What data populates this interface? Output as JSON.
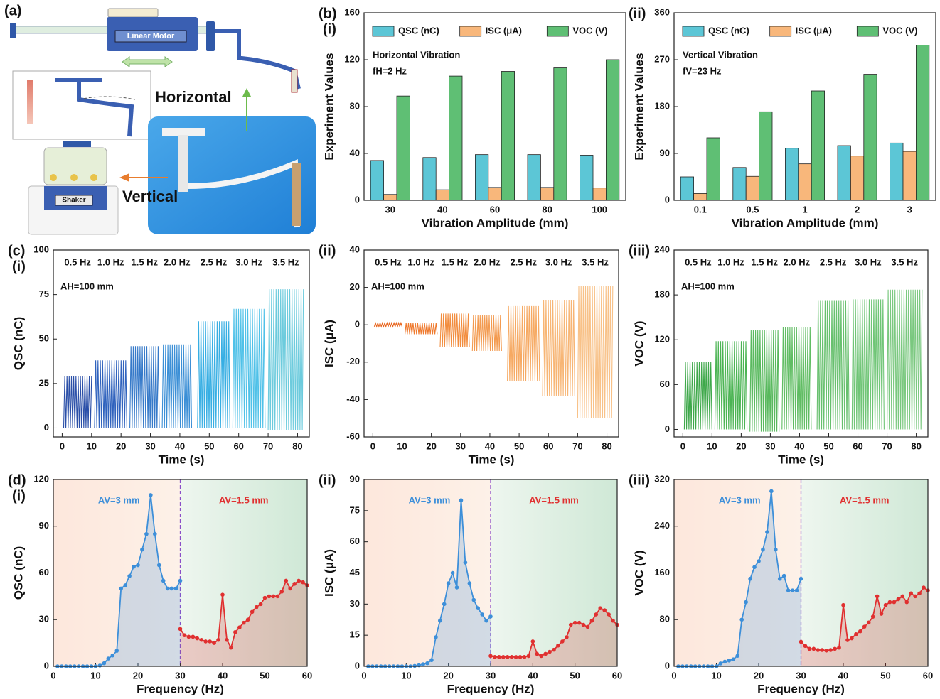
{
  "diagram": {
    "label": "(a)",
    "motor": "Linear Motor",
    "horizontal": "Horizontal",
    "shaker": "Shaker",
    "vertical": "Vertical"
  },
  "chart_data": [
    {
      "type": "bar",
      "panel_labels": [
        "(b)",
        "(i)"
      ],
      "xlabel": "Vibration Amplitude (mm)",
      "ylabel": "Experiment Values",
      "annotations": [
        "Horizontal Vibration",
        "fH=2 Hz"
      ],
      "categories": [
        "30",
        "40",
        "60",
        "80",
        "100"
      ],
      "series": [
        {
          "name": "QSC (nC)",
          "color": "#5cc6d6",
          "values": [
            34,
            36.5,
            39,
            39,
            38.5
          ]
        },
        {
          "name": "ISC (μA)",
          "color": "#f8b77b",
          "values": [
            5,
            9,
            11,
            11,
            10.5
          ]
        },
        {
          "name": "VOC (V)",
          "color": "#5fbf74",
          "values": [
            89,
            106,
            110,
            113,
            120
          ]
        }
      ],
      "ylim": [
        0,
        160
      ],
      "yticks": [
        0,
        40,
        80,
        120,
        160
      ]
    },
    {
      "type": "bar",
      "panel_labels": [
        "(ii)"
      ],
      "xlabel": "Vibration Amplitude (mm)",
      "ylabel": "Experiment Values",
      "annotations": [
        "Vertical Vibration",
        "fV=23 Hz"
      ],
      "categories": [
        "0.1",
        "0.5",
        "1",
        "2",
        "3"
      ],
      "series": [
        {
          "name": "QSC (nC)",
          "color": "#5cc6d6",
          "values": [
            45,
            63,
            100,
            105,
            110
          ]
        },
        {
          "name": "ISC (μA)",
          "color": "#f8b77b",
          "values": [
            13,
            46,
            70,
            85,
            94
          ]
        },
        {
          "name": "VOC (V)",
          "color": "#5fbf74",
          "values": [
            120,
            170,
            210,
            242,
            298
          ]
        }
      ],
      "ylim": [
        0,
        360
      ],
      "yticks": [
        0,
        90,
        180,
        270,
        360
      ]
    },
    {
      "type": "segments",
      "panel_labels": [
        "(c)",
        "(i)"
      ],
      "xlabel": "Time (s)",
      "ylabel": "QSC (nC)",
      "annotations": [
        "AH=100 mm"
      ],
      "series": [
        {
          "name": "0.5 Hz",
          "color": "#2a4fa8",
          "x": [
            0.5,
            10
          ],
          "values": [
            0,
            29
          ]
        },
        {
          "name": "1.0 Hz",
          "color": "#2f62bd",
          "x": [
            11,
            22
          ],
          "values": [
            0,
            38
          ]
        },
        {
          "name": "1.5 Hz",
          "color": "#3579c9",
          "x": [
            23,
            33
          ],
          "values": [
            0,
            46
          ]
        },
        {
          "name": "2.0 Hz",
          "color": "#3b8fd6",
          "x": [
            34,
            44
          ],
          "values": [
            0,
            47
          ]
        },
        {
          "name": "2.5 Hz",
          "color": "#36aee3",
          "x": [
            46,
            57
          ],
          "values": [
            0,
            60
          ]
        },
        {
          "name": "3.0 Hz",
          "color": "#4fc1e8",
          "x": [
            58,
            69
          ],
          "values": [
            0,
            67
          ]
        },
        {
          "name": "3.5 Hz",
          "color": "#6ccbdd",
          "x": [
            70,
            82
          ],
          "values": [
            -1,
            78
          ]
        }
      ],
      "xlim": [
        -3,
        84
      ],
      "xticks": [
        0,
        10,
        20,
        30,
        40,
        50,
        60,
        70,
        80
      ],
      "ylim": [
        -5,
        100
      ],
      "yticks": [
        0,
        25,
        50,
        75,
        100
      ]
    },
    {
      "type": "segments",
      "panel_labels": [
        "(ii)"
      ],
      "xlabel": "Time (s)",
      "ylabel": "ISC (μA)",
      "annotations": [
        "AH=100 mm"
      ],
      "series": [
        {
          "name": "0.5 Hz",
          "color": "#e8661f",
          "x": [
            0.5,
            10
          ],
          "values": [
            -1,
            1
          ]
        },
        {
          "name": "1.0 Hz",
          "color": "#ef7a2e",
          "x": [
            11,
            22
          ],
          "values": [
            -5,
            1
          ]
        },
        {
          "name": "1.5 Hz",
          "color": "#f28c3d",
          "x": [
            23,
            33
          ],
          "values": [
            -12,
            6
          ]
        },
        {
          "name": "2.0 Hz",
          "color": "#f39a4f",
          "x": [
            34,
            44
          ],
          "values": [
            -14,
            5
          ]
        },
        {
          "name": "2.5 Hz",
          "color": "#f6a962",
          "x": [
            46,
            57
          ],
          "values": [
            -30,
            10
          ]
        },
        {
          "name": "3.0 Hz",
          "color": "#f7b574",
          "x": [
            58,
            69
          ],
          "values": [
            -38,
            13
          ]
        },
        {
          "name": "3.5 Hz",
          "color": "#f8c187",
          "x": [
            70,
            82
          ],
          "values": [
            -50,
            21
          ]
        }
      ],
      "xlim": [
        -3,
        84
      ],
      "xticks": [
        0,
        10,
        20,
        30,
        40,
        50,
        60,
        70,
        80
      ],
      "ylim": [
        -60,
        40
      ],
      "yticks": [
        -60,
        -40,
        -20,
        0,
        20,
        40
      ]
    },
    {
      "type": "segments",
      "panel_labels": [
        "(iii)"
      ],
      "xlabel": "Time (s)",
      "ylabel": "VOC (V)",
      "annotations": [
        "AH=100 mm"
      ],
      "series": [
        {
          "name": "0.5 Hz",
          "color": "#3ea84a",
          "x": [
            0.5,
            10
          ],
          "values": [
            0,
            90
          ]
        },
        {
          "name": "1.0 Hz",
          "color": "#4bb453",
          "x": [
            11,
            22
          ],
          "values": [
            0,
            118
          ]
        },
        {
          "name": "1.5 Hz",
          "color": "#58b95d",
          "x": [
            23,
            33
          ],
          "values": [
            -3,
            133
          ]
        },
        {
          "name": "2.0 Hz",
          "color": "#60bd63",
          "x": [
            34,
            44
          ],
          "values": [
            0,
            137
          ]
        },
        {
          "name": "2.5 Hz",
          "color": "#67c06e",
          "x": [
            46,
            57
          ],
          "values": [
            0,
            172
          ]
        },
        {
          "name": "3.0 Hz",
          "color": "#6fc576",
          "x": [
            58,
            69
          ],
          "values": [
            0,
            174
          ]
        },
        {
          "name": "3.5 Hz",
          "color": "#7ac87f",
          "x": [
            70,
            82
          ],
          "values": [
            0,
            187
          ]
        }
      ],
      "xlim": [
        -3,
        84
      ],
      "xticks": [
        0,
        10,
        20,
        30,
        40,
        50,
        60,
        70,
        80
      ],
      "ylim": [
        -10,
        240
      ],
      "yticks": [
        0,
        60,
        120,
        180,
        240
      ]
    },
    {
      "type": "line",
      "panel_labels": [
        "(d)",
        "(i)"
      ],
      "xlabel": "Frequency (Hz)",
      "ylabel": "QSC (nC)",
      "annotations": [
        "AV=3 mm",
        "AV=1.5 mm"
      ],
      "divider_x": 30,
      "series": [
        {
          "color": "#3d8fd9",
          "x": [
            1,
            2,
            3,
            4,
            5,
            6,
            7,
            8,
            9,
            10,
            11,
            12,
            13,
            14,
            15,
            16,
            17,
            18,
            19,
            20,
            21,
            22,
            23,
            24,
            25,
            26,
            27,
            28,
            29,
            30
          ],
          "values": [
            0,
            0,
            0,
            0,
            0,
            0,
            0,
            0,
            0,
            0,
            0.5,
            2,
            5,
            7,
            10,
            50,
            52,
            58,
            64,
            65,
            75,
            85,
            110,
            85,
            65,
            55,
            50,
            50,
            50,
            55
          ]
        },
        {
          "color": "#e03030",
          "x": [
            30,
            31,
            32,
            33,
            34,
            35,
            36,
            37,
            38,
            39,
            40,
            41,
            42,
            43,
            44,
            45,
            46,
            47,
            48,
            49,
            50,
            51,
            52,
            53,
            54,
            55,
            56,
            57,
            58,
            59,
            60
          ],
          "values": [
            24,
            20,
            19,
            19,
            18,
            17,
            16,
            16,
            15,
            17,
            46,
            17,
            12,
            22,
            25,
            28,
            30,
            35,
            38,
            40,
            44,
            45,
            45,
            45,
            48,
            55,
            50,
            53,
            55,
            54,
            52
          ]
        }
      ],
      "xlim": [
        0,
        60
      ],
      "xticks": [
        0,
        10,
        20,
        30,
        40,
        50,
        60
      ],
      "ylim": [
        0,
        120
      ],
      "yticks": [
        0,
        30,
        60,
        90,
        120
      ]
    },
    {
      "type": "line",
      "panel_labels": [
        "(ii)"
      ],
      "xlabel": "Frequency (Hz)",
      "ylabel": "ISC (μA)",
      "annotations": [
        "AV=3 mm",
        "AV=1.5 mm"
      ],
      "divider_x": 30,
      "series": [
        {
          "color": "#3d8fd9",
          "x": [
            1,
            2,
            3,
            4,
            5,
            6,
            7,
            8,
            9,
            10,
            11,
            12,
            13,
            14,
            15,
            16,
            17,
            18,
            19,
            20,
            21,
            22,
            23,
            24,
            25,
            26,
            27,
            28,
            29,
            30
          ],
          "values": [
            0,
            0,
            0,
            0,
            0,
            0,
            0,
            0,
            0,
            0,
            0,
            0.2,
            0.5,
            1,
            1.5,
            3,
            14,
            22,
            30,
            40,
            45,
            38,
            80,
            50,
            40,
            32,
            28,
            25,
            22,
            24
          ]
        },
        {
          "color": "#e03030",
          "x": [
            30,
            31,
            32,
            33,
            34,
            35,
            36,
            37,
            38,
            39,
            40,
            41,
            42,
            43,
            44,
            45,
            46,
            47,
            48,
            49,
            50,
            51,
            52,
            53,
            54,
            55,
            56,
            57,
            58,
            59,
            60
          ],
          "values": [
            5,
            4.5,
            4.5,
            4.5,
            4.5,
            4.5,
            4.5,
            4.5,
            4.5,
            5,
            12,
            6,
            5,
            6,
            7,
            8,
            10,
            12,
            14,
            20,
            21,
            21,
            20,
            19,
            22,
            25,
            28,
            27,
            25,
            22,
            20
          ]
        }
      ],
      "xlim": [
        0,
        60
      ],
      "xticks": [
        0,
        10,
        20,
        30,
        40,
        50,
        60
      ],
      "ylim": [
        0,
        90
      ],
      "yticks": [
        0,
        15,
        30,
        45,
        60,
        75,
        90
      ]
    },
    {
      "type": "line",
      "panel_labels": [
        "(iii)"
      ],
      "xlabel": "Frequency (Hz)",
      "ylabel": "VOC (V)",
      "annotations": [
        "AV=3 mm",
        "AV=1.5 mm"
      ],
      "divider_x": 30,
      "series": [
        {
          "color": "#3d8fd9",
          "x": [
            1,
            2,
            3,
            4,
            5,
            6,
            7,
            8,
            9,
            10,
            11,
            12,
            13,
            14,
            15,
            16,
            17,
            18,
            19,
            20,
            21,
            22,
            23,
            24,
            25,
            26,
            27,
            28,
            29,
            30
          ],
          "values": [
            0,
            0,
            0,
            0,
            0,
            0,
            0,
            0,
            0,
            0,
            5,
            8,
            10,
            12,
            18,
            80,
            110,
            150,
            170,
            180,
            200,
            230,
            300,
            200,
            150,
            155,
            130,
            130,
            130,
            150
          ]
        },
        {
          "color": "#e03030",
          "x": [
            30,
            31,
            32,
            33,
            34,
            35,
            36,
            37,
            38,
            39,
            40,
            41,
            42,
            43,
            44,
            45,
            46,
            47,
            48,
            49,
            50,
            51,
            52,
            53,
            54,
            55,
            56,
            57,
            58,
            59,
            60
          ],
          "values": [
            42,
            35,
            30,
            30,
            28,
            28,
            27,
            28,
            30,
            32,
            105,
            45,
            48,
            55,
            60,
            68,
            75,
            85,
            120,
            90,
            105,
            110,
            110,
            115,
            120,
            110,
            125,
            120,
            125,
            135,
            130
          ]
        }
      ],
      "xlim": [
        0,
        60
      ],
      "xticks": [
        0,
        10,
        20,
        30,
        40,
        50,
        60
      ],
      "ylim": [
        0,
        320
      ],
      "yticks": [
        0,
        80,
        160,
        240,
        320
      ]
    }
  ]
}
